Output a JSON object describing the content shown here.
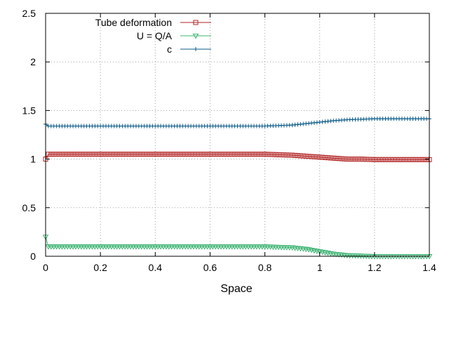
{
  "chart_data": {
    "type": "line",
    "title": "",
    "xlabel": "Space",
    "ylabel": "",
    "xlim": [
      0,
      1.4
    ],
    "ylim": [
      0,
      2.5
    ],
    "grid": true,
    "legend_position": "top-left",
    "x_ticks": [
      "0",
      "0.2",
      "0.4",
      "0.6",
      "0.8",
      "1",
      "1.2",
      "1.4"
    ],
    "y_ticks": [
      "0",
      "0.5",
      "1",
      "1.5",
      "2",
      "2.5"
    ],
    "series": [
      {
        "name": "Tube deformation",
        "color": "#b22222",
        "marker": "square",
        "x": [
          0,
          0.01,
          0.05,
          0.1,
          0.2,
          0.3,
          0.4,
          0.5,
          0.6,
          0.7,
          0.8,
          0.85,
          0.9,
          0.95,
          1.0,
          1.05,
          1.1,
          1.15,
          1.2,
          1.3,
          1.4
        ],
        "y": [
          1.0,
          1.05,
          1.05,
          1.05,
          1.05,
          1.05,
          1.05,
          1.05,
          1.05,
          1.05,
          1.05,
          1.045,
          1.04,
          1.03,
          1.02,
          1.01,
          1.0,
          1.0,
          0.995,
          0.995,
          0.995
        ]
      },
      {
        "name": "U = Q/A",
        "color": "#3cb371",
        "marker": "triangle-down",
        "x": [
          0,
          0.01,
          0.05,
          0.1,
          0.2,
          0.3,
          0.4,
          0.5,
          0.6,
          0.7,
          0.8,
          0.85,
          0.9,
          0.95,
          1.0,
          1.05,
          1.1,
          1.15,
          1.2,
          1.3,
          1.4
        ],
        "y": [
          0.2,
          0.1,
          0.1,
          0.1,
          0.1,
          0.1,
          0.1,
          0.1,
          0.1,
          0.1,
          0.1,
          0.095,
          0.09,
          0.075,
          0.05,
          0.025,
          0.01,
          0.005,
          0.0,
          0.0,
          0.0
        ]
      },
      {
        "name": "c",
        "color": "#0b5b8a",
        "marker": "plus",
        "x": [
          0,
          0.01,
          0.05,
          0.1,
          0.2,
          0.3,
          0.4,
          0.5,
          0.6,
          0.7,
          0.8,
          0.85,
          0.9,
          0.95,
          1.0,
          1.05,
          1.1,
          1.15,
          1.2,
          1.3,
          1.4
        ],
        "y": [
          1.36,
          1.34,
          1.34,
          1.34,
          1.34,
          1.34,
          1.34,
          1.34,
          1.34,
          1.34,
          1.34,
          1.345,
          1.35,
          1.365,
          1.38,
          1.395,
          1.405,
          1.41,
          1.415,
          1.415,
          1.415
        ]
      }
    ]
  }
}
